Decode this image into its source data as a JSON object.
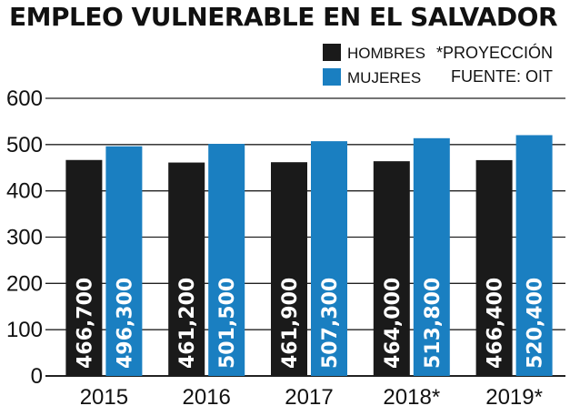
{
  "chart_data": {
    "type": "bar",
    "title": "EMPLEO VULNERABLE EN EL SALVADOR",
    "categories": [
      "2015",
      "2016",
      "2017",
      "2018*",
      "2019*"
    ],
    "series": [
      {
        "name": "HOMBRES",
        "color": "#1a1a1a",
        "values": [
          466700,
          461200,
          461900,
          464000,
          466400
        ],
        "labels": [
          "466,700",
          "461,200",
          "461,900",
          "464,000",
          "466,400"
        ]
      },
      {
        "name": "MUJERES",
        "color": "#1a7fc1",
        "values": [
          496300,
          501500,
          507300,
          513800,
          520400
        ],
        "labels": [
          "496,300",
          "501,500",
          "507,300",
          "513,800",
          "520,400"
        ]
      }
    ],
    "y_ticks": [
      "0",
      "100",
      "200",
      "300",
      "400",
      "500",
      "600"
    ],
    "y_unit_scale": 1000,
    "ylim": [
      0,
      600
    ],
    "grid": true,
    "legend_position": "top-right",
    "notes": [
      "*PROYECCIÓN",
      "FUENTE: OIT"
    ]
  }
}
